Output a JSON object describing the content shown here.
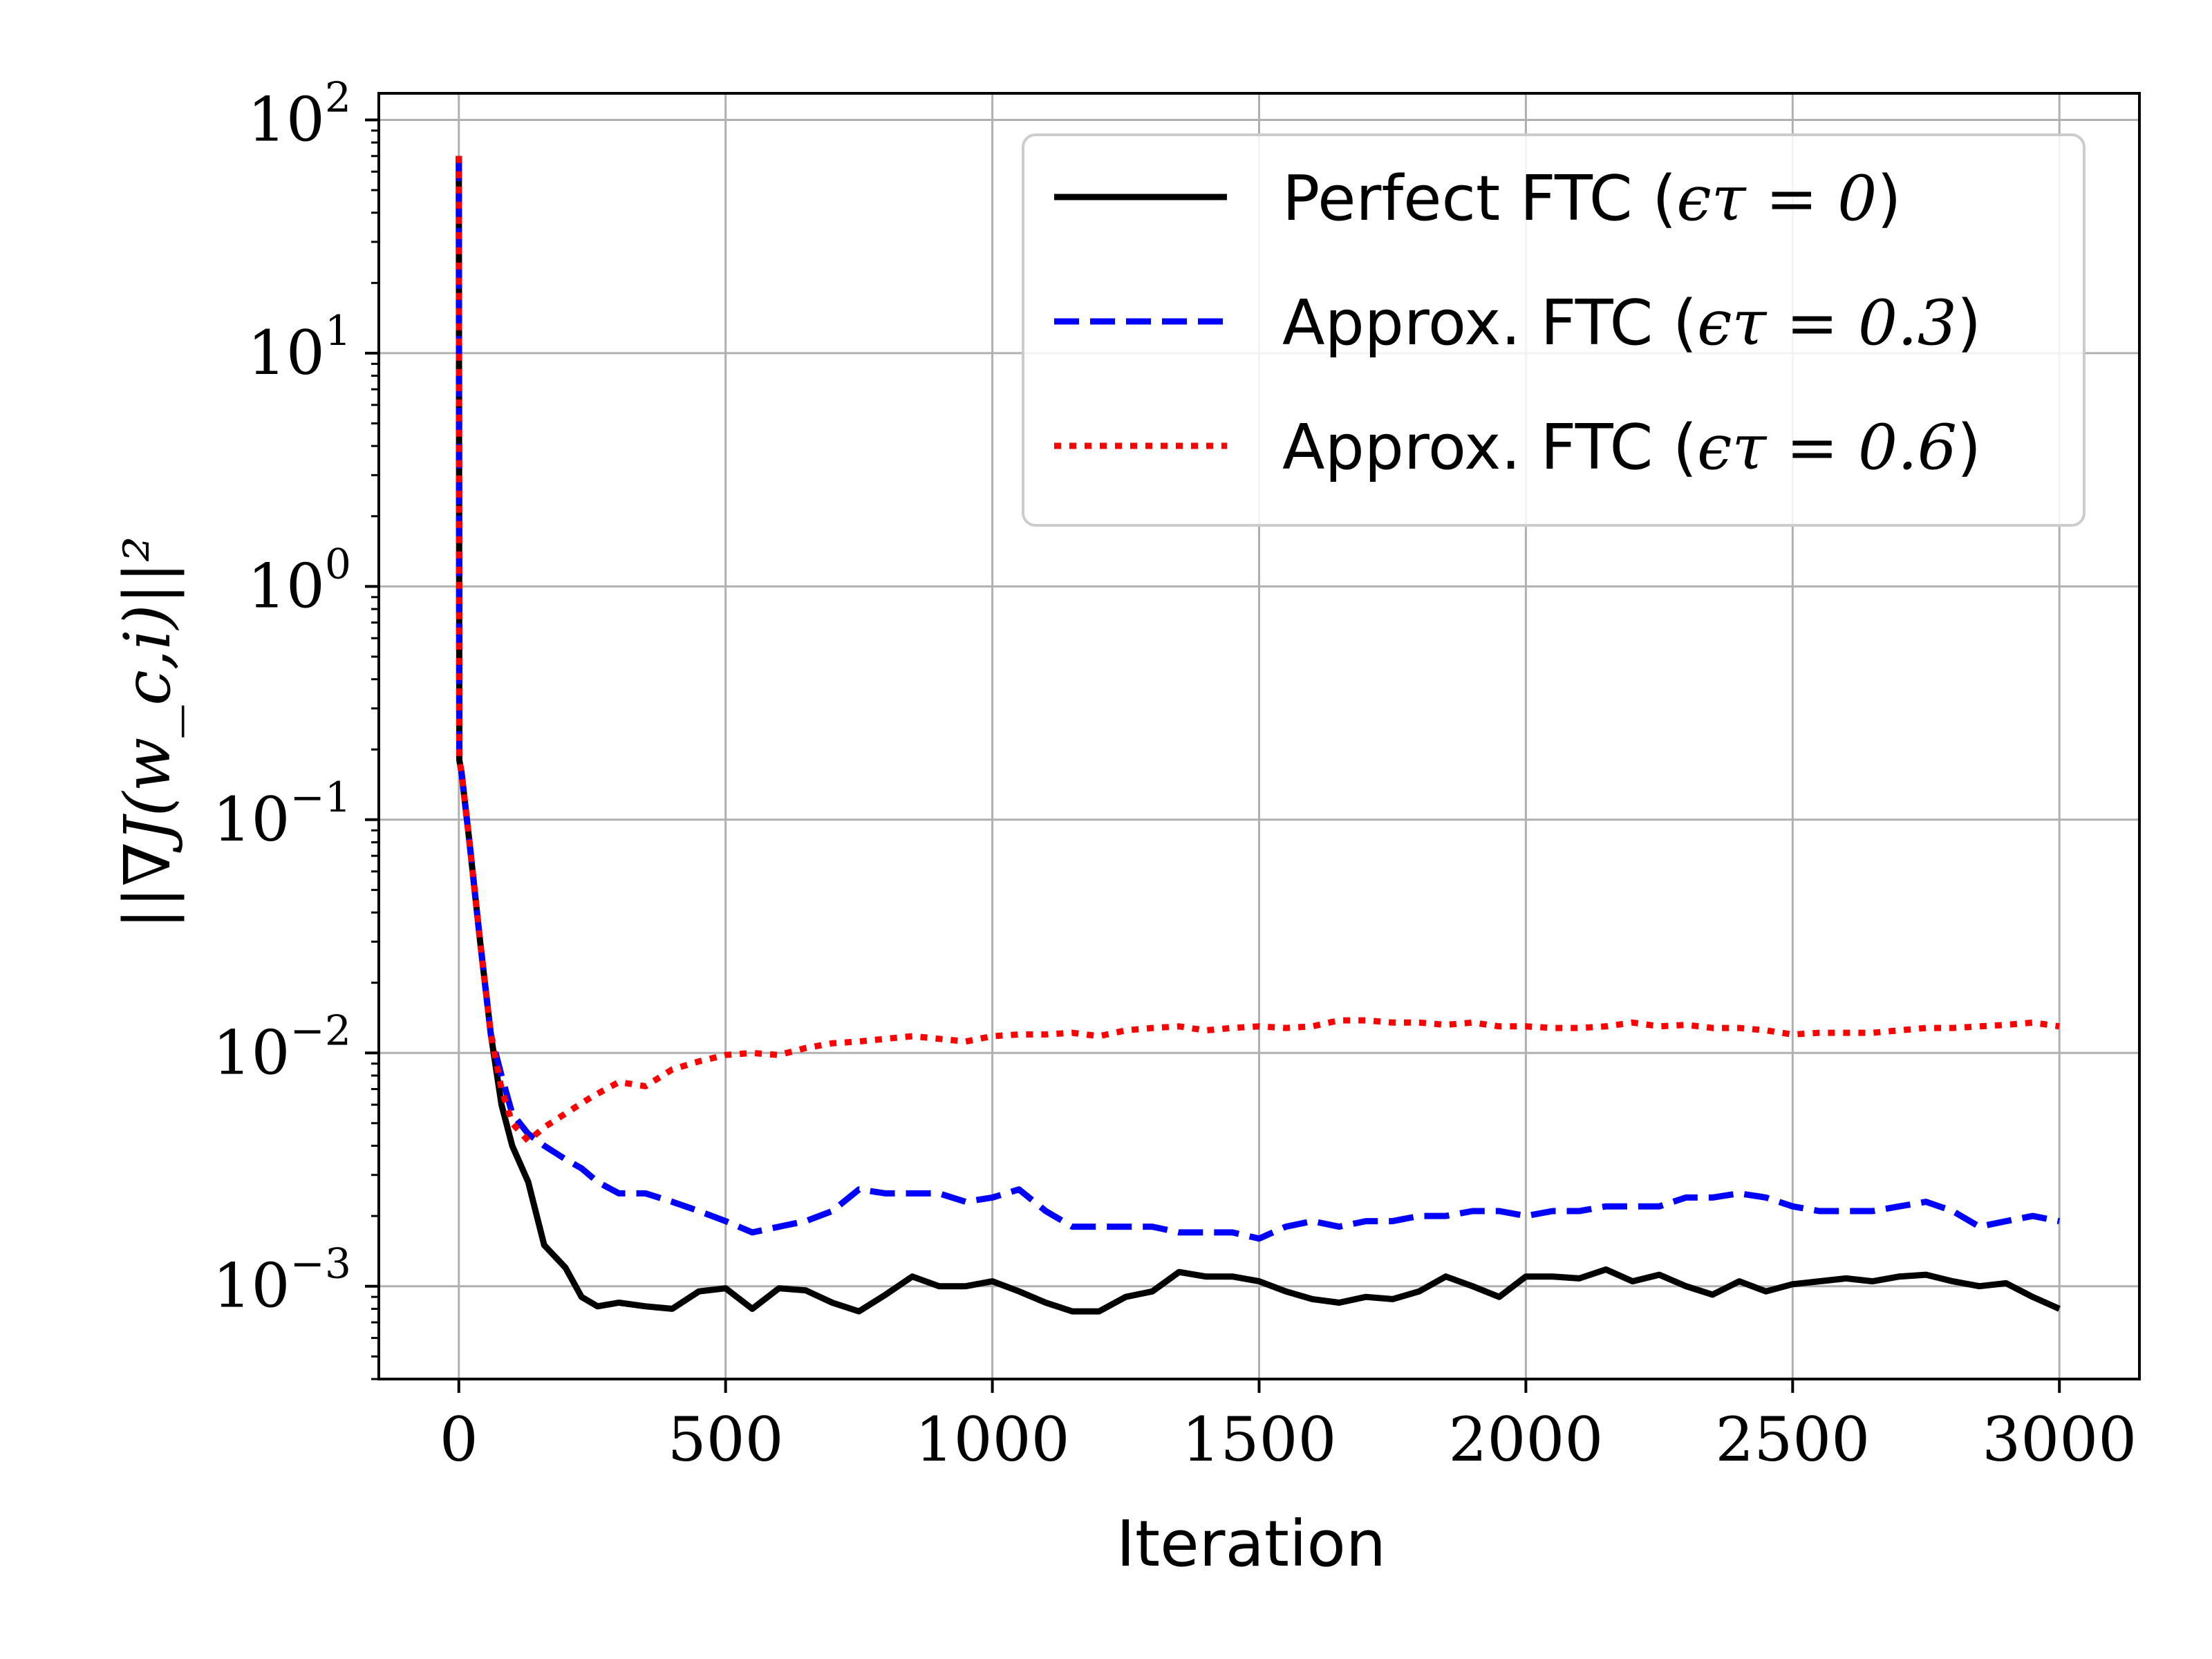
{
  "chart_data": {
    "type": "line",
    "title": "",
    "xlabel": "Iteration",
    "ylabel": "||∇J(w_c,i)||²",
    "yscale": "log",
    "xlim": [
      -150,
      3150
    ],
    "ylim": [
      0.0004,
      130
    ],
    "grid": true,
    "legend_position": "top-right",
    "x_ticks": [
      {
        "value": 0,
        "label": "0"
      },
      {
        "value": 500,
        "label": "500"
      },
      {
        "value": 1000,
        "label": "1000"
      },
      {
        "value": 1500,
        "label": "1500"
      },
      {
        "value": 2000,
        "label": "2000"
      },
      {
        "value": 2500,
        "label": "2500"
      },
      {
        "value": 3000,
        "label": "3000"
      }
    ],
    "y_ticks": [
      {
        "value": 100,
        "label": "10",
        "exp": "2"
      },
      {
        "value": 10,
        "label": "10",
        "exp": "1"
      },
      {
        "value": 1,
        "label": "10",
        "exp": "0"
      },
      {
        "value": 0.1,
        "label": "10",
        "exp": "−1"
      },
      {
        "value": 0.01,
        "label": "10",
        "exp": "−2"
      },
      {
        "value": 0.001,
        "label": "10",
        "exp": "−3"
      }
    ],
    "series": [
      {
        "name": "Perfect FTC (ϵτ = 0)",
        "color": "#000000",
        "style": "solid",
        "x": [
          0,
          1,
          5,
          20,
          40,
          60,
          80,
          100,
          130,
          160,
          200,
          230,
          260,
          300,
          350,
          400,
          450,
          500,
          550,
          600,
          650,
          700,
          750,
          800,
          850,
          900,
          950,
          1000,
          1050,
          1100,
          1150,
          1200,
          1250,
          1300,
          1350,
          1400,
          1450,
          1500,
          1550,
          1600,
          1650,
          1700,
          1750,
          1800,
          1850,
          1900,
          1950,
          2000,
          2050,
          2100,
          2150,
          2200,
          2250,
          2300,
          2350,
          2400,
          2450,
          2500,
          2550,
          2600,
          2650,
          2700,
          2750,
          2800,
          2850,
          2900,
          2950,
          3000
        ],
        "y": [
          70,
          0.18,
          0.16,
          0.08,
          0.03,
          0.012,
          0.006,
          0.004,
          0.0028,
          0.0015,
          0.0012,
          0.0009,
          0.00082,
          0.00085,
          0.00082,
          0.0008,
          0.00095,
          0.00098,
          0.0008,
          0.00098,
          0.00096,
          0.00085,
          0.00078,
          0.00092,
          0.0011,
          0.001,
          0.001,
          0.00105,
          0.00095,
          0.00085,
          0.00078,
          0.00078,
          0.0009,
          0.00095,
          0.00115,
          0.0011,
          0.0011,
          0.00105,
          0.00095,
          0.00088,
          0.00085,
          0.0009,
          0.00088,
          0.00095,
          0.0011,
          0.001,
          0.0009,
          0.0011,
          0.0011,
          0.00108,
          0.00118,
          0.00105,
          0.00112,
          0.001,
          0.00092,
          0.00105,
          0.00095,
          0.00102,
          0.00105,
          0.00108,
          0.00105,
          0.0011,
          0.00112,
          0.00105,
          0.001,
          0.00103,
          0.0009,
          0.0008
        ]
      },
      {
        "name": "Approx. FTC (ϵτ = 0.3)",
        "color": "#0000ff",
        "style": "dashed",
        "x": [
          0,
          1,
          5,
          20,
          40,
          60,
          80,
          100,
          130,
          160,
          200,
          230,
          260,
          300,
          350,
          400,
          450,
          500,
          550,
          600,
          650,
          700,
          750,
          800,
          850,
          900,
          950,
          1000,
          1050,
          1100,
          1150,
          1200,
          1250,
          1300,
          1350,
          1400,
          1450,
          1500,
          1550,
          1600,
          1650,
          1700,
          1750,
          1800,
          1850,
          1900,
          1950,
          2000,
          2050,
          2100,
          2150,
          2200,
          2250,
          2300,
          2350,
          2400,
          2450,
          2500,
          2550,
          2600,
          2650,
          2700,
          2750,
          2800,
          2850,
          2900,
          2950,
          3000
        ],
        "y": [
          70,
          0.18,
          0.16,
          0.08,
          0.03,
          0.012,
          0.008,
          0.0055,
          0.0045,
          0.004,
          0.0035,
          0.0032,
          0.0028,
          0.0025,
          0.0025,
          0.0023,
          0.0021,
          0.0019,
          0.0017,
          0.0018,
          0.0019,
          0.0021,
          0.0026,
          0.0025,
          0.0025,
          0.0025,
          0.0023,
          0.0024,
          0.0026,
          0.0021,
          0.0018,
          0.0018,
          0.0018,
          0.0018,
          0.0017,
          0.0017,
          0.0017,
          0.0016,
          0.0018,
          0.0019,
          0.0018,
          0.0019,
          0.0019,
          0.002,
          0.002,
          0.0021,
          0.0021,
          0.002,
          0.0021,
          0.0021,
          0.0022,
          0.0022,
          0.0022,
          0.0024,
          0.0024,
          0.0025,
          0.0024,
          0.0022,
          0.0021,
          0.0021,
          0.0021,
          0.0022,
          0.0023,
          0.0021,
          0.0018,
          0.0019,
          0.002,
          0.0019
        ]
      },
      {
        "name": "Approx. FTC (ϵτ = 0.6)",
        "color": "#ff0000",
        "style": "dotted",
        "x": [
          0,
          1,
          5,
          20,
          40,
          60,
          80,
          100,
          130,
          160,
          200,
          250,
          300,
          350,
          400,
          450,
          500,
          550,
          600,
          650,
          700,
          750,
          800,
          850,
          900,
          950,
          1000,
          1050,
          1100,
          1150,
          1200,
          1250,
          1300,
          1350,
          1400,
          1450,
          1500,
          1550,
          1600,
          1650,
          1700,
          1750,
          1800,
          1850,
          1900,
          1950,
          2000,
          2050,
          2100,
          2150,
          2200,
          2250,
          2300,
          2350,
          2400,
          2450,
          2500,
          2550,
          2600,
          2650,
          2700,
          2750,
          2800,
          2850,
          2900,
          2950,
          3000
        ],
        "y": [
          70,
          0.18,
          0.16,
          0.08,
          0.03,
          0.012,
          0.007,
          0.005,
          0.0042,
          0.0048,
          0.0055,
          0.0065,
          0.0075,
          0.0072,
          0.0085,
          0.0092,
          0.0098,
          0.01,
          0.0098,
          0.0105,
          0.011,
          0.0112,
          0.0115,
          0.0118,
          0.0115,
          0.0112,
          0.0118,
          0.012,
          0.012,
          0.0122,
          0.0118,
          0.0125,
          0.0128,
          0.013,
          0.0125,
          0.0128,
          0.013,
          0.0128,
          0.013,
          0.0138,
          0.0138,
          0.0135,
          0.0135,
          0.0132,
          0.0135,
          0.013,
          0.013,
          0.0128,
          0.0128,
          0.013,
          0.0135,
          0.013,
          0.0132,
          0.0128,
          0.0128,
          0.0125,
          0.012,
          0.0122,
          0.0122,
          0.0122,
          0.0125,
          0.0128,
          0.0128,
          0.013,
          0.0132,
          0.0135,
          0.013
        ]
      }
    ]
  },
  "legend": [
    {
      "label": "Perfect FTC (",
      "math": "ϵτ = 0",
      "close": ")"
    },
    {
      "label": "Approx.  FTC (",
      "math": "ϵτ = 0.3",
      "close": ")"
    },
    {
      "label": "Approx.  FTC (",
      "math": "ϵτ = 0.6",
      "close": ")"
    }
  ]
}
